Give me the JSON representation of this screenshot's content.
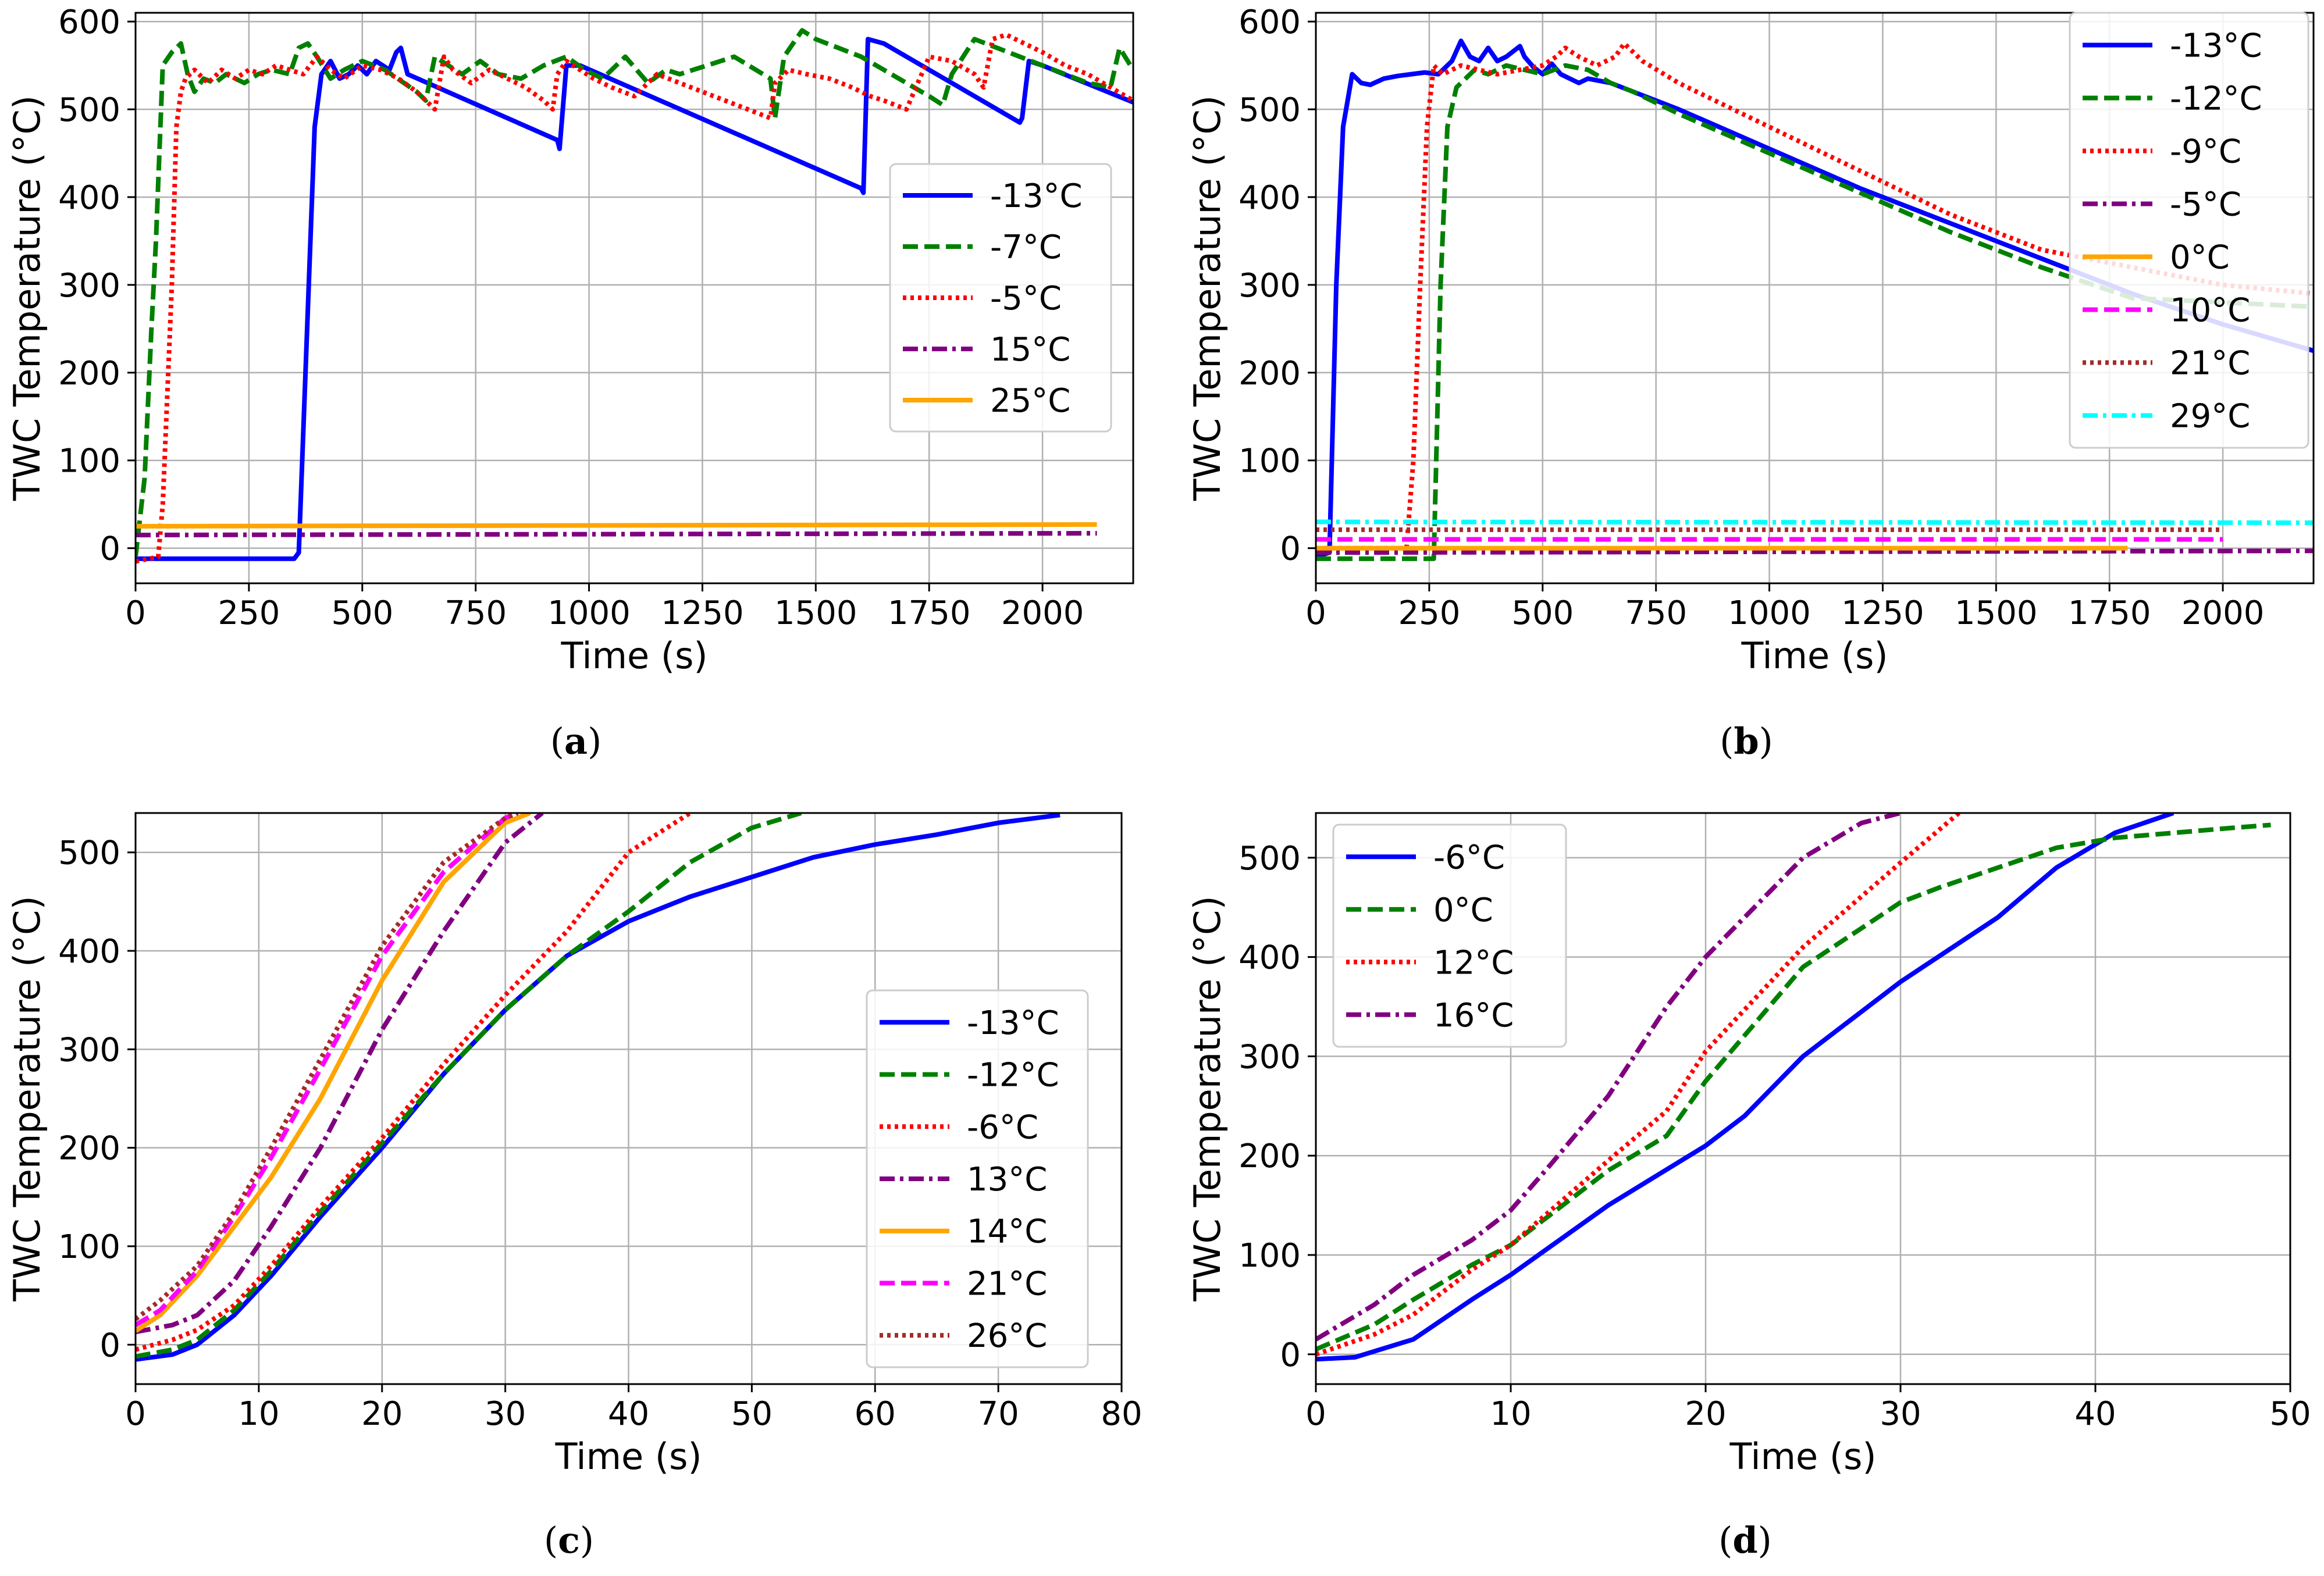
{
  "colors": {
    "blue": "#0000ff",
    "green": "#008000",
    "red": "#ff0000",
    "purple": "#800080",
    "orange": "#ffa500",
    "magenta": "#ff00ff",
    "brown": "#a52a2a",
    "cyan": "#00ffff",
    "grid": "#b0b0b0"
  },
  "chart_data": [
    {
      "type": "line",
      "panel_caption": "(a)",
      "xlabel": "Time (s)",
      "ylabel": "TWC Temperature (°C)",
      "xlim": [
        0,
        2200
      ],
      "ylim": [
        -40,
        610
      ],
      "xticks": [
        0,
        250,
        500,
        750,
        1000,
        1250,
        1500,
        1750,
        2000
      ],
      "yticks": [
        0,
        100,
        200,
        300,
        400,
        500,
        600
      ],
      "grid": true,
      "legend_position": "center-right",
      "series": [
        {
          "name": "-13°C",
          "color": "blue",
          "style": "solid",
          "x": [
            0,
            350,
            360,
            395,
            410,
            430,
            450,
            470,
            490,
            510,
            530,
            560,
            575,
            585,
            600,
            930,
            935,
            950,
            980,
            1600,
            1605,
            1615,
            1650,
            1950,
            1955,
            1970,
            2000,
            2200
          ],
          "y": [
            -12,
            -12,
            -5,
            480,
            540,
            555,
            535,
            540,
            550,
            540,
            555,
            545,
            565,
            570,
            540,
            465,
            455,
            550,
            550,
            410,
            405,
            580,
            575,
            485,
            490,
            555,
            550,
            508
          ]
        },
        {
          "name": "-7°C",
          "color": "green",
          "style": "dashed",
          "x": [
            0,
            20,
            35,
            45,
            60,
            80,
            100,
            115,
            130,
            150,
            175,
            200,
            240,
            270,
            300,
            340,
            360,
            380,
            400,
            430,
            460,
            500,
            550,
            620,
            640,
            660,
            690,
            720,
            760,
            800,
            850,
            900,
            950,
            990,
            1030,
            1080,
            1130,
            1170,
            1200,
            1260,
            1320,
            1400,
            1410,
            1430,
            1450,
            1470,
            1500,
            1550,
            1600,
            1650,
            1700,
            1750,
            1780,
            1800,
            1850,
            1900,
            1950,
            2000,
            2050,
            2100,
            2150,
            2170,
            2200
          ],
          "y": [
            -10,
            80,
            250,
            350,
            550,
            565,
            575,
            540,
            520,
            535,
            530,
            540,
            530,
            540,
            545,
            540,
            570,
            575,
            560,
            535,
            545,
            555,
            545,
            520,
            510,
            560,
            550,
            540,
            555,
            540,
            535,
            550,
            560,
            545,
            535,
            560,
            530,
            545,
            540,
            550,
            560,
            535,
            490,
            560,
            575,
            590,
            580,
            570,
            560,
            545,
            530,
            515,
            505,
            540,
            580,
            570,
            560,
            550,
            540,
            530,
            525,
            570,
            545
          ]
        },
        {
          "name": "-5°C",
          "color": "red",
          "style": "dotted",
          "x": [
            0,
            50,
            60,
            80,
            90,
            100,
            110,
            130,
            160,
            190,
            220,
            250,
            280,
            310,
            340,
            370,
            400,
            430,
            460,
            500,
            540,
            580,
            620,
            660,
            680,
            700,
            740,
            780,
            820,
            860,
            900,
            920,
            930,
            950,
            980,
            1010,
            1050,
            1100,
            1150,
            1200,
            1250,
            1300,
            1350,
            1400,
            1410,
            1440,
            1480,
            1530,
            1580,
            1620,
            1650,
            1700,
            1750,
            1800,
            1850,
            1870,
            1890,
            1920,
            1960,
            2000,
            2050,
            2100,
            2150,
            2200
          ],
          "y": [
            -15,
            -10,
            50,
            300,
            480,
            520,
            535,
            545,
            530,
            545,
            535,
            545,
            540,
            550,
            545,
            540,
            560,
            545,
            535,
            550,
            545,
            535,
            520,
            500,
            560,
            545,
            530,
            545,
            535,
            525,
            510,
            500,
            540,
            555,
            545,
            535,
            525,
            515,
            540,
            530,
            520,
            510,
            500,
            490,
            530,
            545,
            540,
            535,
            525,
            515,
            510,
            500,
            560,
            555,
            540,
            525,
            580,
            585,
            575,
            565,
            550,
            540,
            525,
            510
          ]
        },
        {
          "name": "15°C",
          "color": "purple",
          "style": "dashdot",
          "x": [
            0,
            2120
          ],
          "y": [
            15,
            17
          ]
        },
        {
          "name": "25°C",
          "color": "orange",
          "style": "solid",
          "x": [
            0,
            2120
          ],
          "y": [
            25,
            27
          ]
        }
      ]
    },
    {
      "type": "line",
      "panel_caption": "(b)",
      "xlabel": "Time (s)",
      "ylabel": "TWC Temperature (°C)",
      "xlim": [
        0,
        2200
      ],
      "ylim": [
        -40,
        610
      ],
      "xticks": [
        0,
        250,
        500,
        750,
        1000,
        1250,
        1500,
        1750,
        2000
      ],
      "yticks": [
        0,
        100,
        200,
        300,
        400,
        500,
        600
      ],
      "grid": true,
      "legend_position": "upper-right",
      "series": [
        {
          "name": "-13°C",
          "color": "blue",
          "style": "solid",
          "x": [
            0,
            30,
            45,
            60,
            80,
            100,
            120,
            150,
            180,
            210,
            240,
            270,
            300,
            320,
            340,
            360,
            380,
            400,
            420,
            440,
            450,
            460,
            480,
            500,
            520,
            540,
            560,
            580,
            600,
            650,
            700,
            800,
            1000,
            1200,
            1400,
            1600,
            1800,
            2000,
            2200
          ],
          "y": [
            -10,
            -5,
            300,
            480,
            540,
            530,
            528,
            535,
            538,
            540,
            542,
            540,
            555,
            578,
            560,
            555,
            570,
            555,
            560,
            568,
            572,
            560,
            548,
            540,
            552,
            540,
            535,
            530,
            535,
            530,
            520,
            500,
            455,
            410,
            370,
            330,
            290,
            255,
            225
          ]
        },
        {
          "name": "-12°C",
          "color": "green",
          "style": "dashed",
          "x": [
            0,
            260,
            275,
            290,
            310,
            330,
            350,
            380,
            420,
            460,
            500,
            550,
            600,
            650,
            700,
            800,
            1000,
            1200,
            1400,
            1600,
            1800,
            2000,
            2200
          ],
          "y": [
            -12,
            -12,
            300,
            480,
            525,
            535,
            545,
            540,
            550,
            545,
            540,
            550,
            545,
            530,
            520,
            495,
            450,
            405,
            360,
            320,
            285,
            280,
            275
          ]
        },
        {
          "name": "-9°C",
          "color": "red",
          "style": "dotted",
          "x": [
            0,
            200,
            215,
            230,
            245,
            260,
            280,
            320,
            360,
            400,
            450,
            500,
            530,
            550,
            580,
            620,
            660,
            680,
            700,
            720,
            800,
            1000,
            1200,
            1400,
            1600,
            1800,
            2000,
            2200
          ],
          "y": [
            0,
            0,
            100,
            300,
            480,
            550,
            540,
            550,
            545,
            540,
            545,
            550,
            560,
            570,
            560,
            550,
            560,
            575,
            565,
            555,
            530,
            480,
            430,
            380,
            340,
            320,
            300,
            290
          ]
        },
        {
          "name": "-5°C",
          "color": "purple",
          "style": "dashdot",
          "x": [
            0,
            2200
          ],
          "y": [
            -5,
            -3
          ]
        },
        {
          "name": "0°C",
          "color": "orange",
          "style": "solid",
          "x": [
            0,
            1790
          ],
          "y": [
            0,
            0
          ]
        },
        {
          "name": "10°C",
          "color": "magenta",
          "style": "dashed",
          "x": [
            0,
            2000
          ],
          "y": [
            10,
            10
          ]
        },
        {
          "name": "21°C",
          "color": "brown",
          "style": "dotted",
          "x": [
            0,
            2000
          ],
          "y": [
            21,
            21
          ]
        },
        {
          "name": "29°C",
          "color": "cyan",
          "style": "dashdot",
          "x": [
            0,
            2200
          ],
          "y": [
            30,
            29
          ]
        }
      ]
    },
    {
      "type": "line",
      "panel_caption": "(c)",
      "xlabel": "Time (s)",
      "ylabel": "TWC Temperature (°C)",
      "xlim": [
        0,
        80
      ],
      "ylim": [
        -40,
        540
      ],
      "xticks": [
        0,
        10,
        20,
        30,
        40,
        50,
        60,
        70,
        80
      ],
      "yticks": [
        0,
        100,
        200,
        300,
        400,
        500
      ],
      "grid": true,
      "legend_position": "lower-right",
      "series": [
        {
          "name": "-13°C",
          "color": "blue",
          "style": "solid",
          "x": [
            0,
            3,
            5,
            8,
            11,
            15,
            20,
            25,
            30,
            35,
            40,
            45,
            50,
            55,
            60,
            65,
            70,
            75
          ],
          "y": [
            -15,
            -10,
            0,
            30,
            70,
            130,
            200,
            275,
            340,
            395,
            430,
            455,
            475,
            495,
            508,
            518,
            530,
            538
          ]
        },
        {
          "name": "-12°C",
          "color": "green",
          "style": "dashed",
          "x": [
            0,
            3,
            5,
            8,
            11,
            15,
            20,
            25,
            30,
            35,
            40,
            45,
            50,
            54
          ],
          "y": [
            -12,
            -5,
            5,
            35,
            75,
            135,
            205,
            275,
            340,
            395,
            440,
            490,
            525,
            540
          ]
        },
        {
          "name": "-6°C",
          "color": "red",
          "style": "dotted",
          "x": [
            0,
            3,
            5,
            8,
            11,
            15,
            20,
            25,
            30,
            35,
            40,
            45
          ],
          "y": [
            -5,
            5,
            15,
            40,
            80,
            140,
            210,
            285,
            355,
            420,
            500,
            540
          ]
        },
        {
          "name": "13°C",
          "color": "purple",
          "style": "dashdot",
          "x": [
            0,
            3,
            5,
            8,
            11,
            15,
            20,
            25,
            30,
            33
          ],
          "y": [
            13,
            20,
            30,
            65,
            120,
            200,
            320,
            420,
            510,
            540
          ]
        },
        {
          "name": "14°C",
          "color": "orange",
          "style": "solid",
          "x": [
            0,
            2,
            5,
            8,
            11,
            15,
            20,
            25,
            30,
            32
          ],
          "y": [
            14,
            30,
            70,
            120,
            170,
            250,
            370,
            470,
            530,
            540
          ]
        },
        {
          "name": "21°C",
          "color": "magenta",
          "style": "dashed",
          "x": [
            0,
            2,
            5,
            8,
            11,
            15,
            20,
            25,
            30,
            31
          ],
          "y": [
            20,
            35,
            75,
            130,
            190,
            280,
            395,
            480,
            535,
            540
          ]
        },
        {
          "name": "26°C",
          "color": "brown",
          "style": "dotted",
          "x": [
            0,
            2,
            5,
            8,
            11,
            15,
            20,
            25,
            30,
            31
          ],
          "y": [
            26,
            45,
            80,
            135,
            200,
            290,
            405,
            490,
            535,
            540
          ]
        }
      ]
    },
    {
      "type": "line",
      "panel_caption": "(d)",
      "xlabel": "Time (s)",
      "ylabel": "TWC Temperature (°C)",
      "xlim": [
        0,
        50
      ],
      "ylim": [
        -30,
        545
      ],
      "xticks": [
        0,
        10,
        20,
        30,
        40,
        50
      ],
      "yticks": [
        0,
        100,
        200,
        300,
        400,
        500
      ],
      "grid": true,
      "legend_position": "upper-left",
      "series": [
        {
          "name": "-6°C",
          "color": "blue",
          "style": "solid",
          "x": [
            0,
            2,
            5,
            8,
            10,
            15,
            20,
            22,
            25,
            30,
            35,
            38,
            41,
            44
          ],
          "y": [
            -5,
            -3,
            15,
            55,
            80,
            150,
            210,
            240,
            300,
            375,
            440,
            490,
            525,
            545
          ]
        },
        {
          "name": "0°C",
          "color": "green",
          "style": "dashed",
          "x": [
            0,
            3,
            5,
            8,
            10,
            15,
            18,
            20,
            25,
            30,
            32,
            35,
            38,
            41,
            44,
            47,
            49
          ],
          "y": [
            5,
            30,
            55,
            90,
            110,
            185,
            220,
            275,
            390,
            455,
            470,
            490,
            510,
            520,
            525,
            530,
            533
          ]
        },
        {
          "name": "12°C",
          "color": "red",
          "style": "dotted",
          "x": [
            0,
            3,
            5,
            8,
            10,
            15,
            18,
            20,
            25,
            30,
            33
          ],
          "y": [
            0,
            20,
            40,
            85,
            110,
            195,
            245,
            305,
            410,
            495,
            545
          ]
        },
        {
          "name": "16°C",
          "color": "purple",
          "style": "dashdot",
          "x": [
            0,
            3,
            5,
            8,
            10,
            12,
            15,
            18,
            20,
            25,
            28,
            30
          ],
          "y": [
            15,
            50,
            80,
            115,
            145,
            190,
            260,
            350,
            400,
            500,
            535,
            545
          ]
        }
      ]
    }
  ]
}
